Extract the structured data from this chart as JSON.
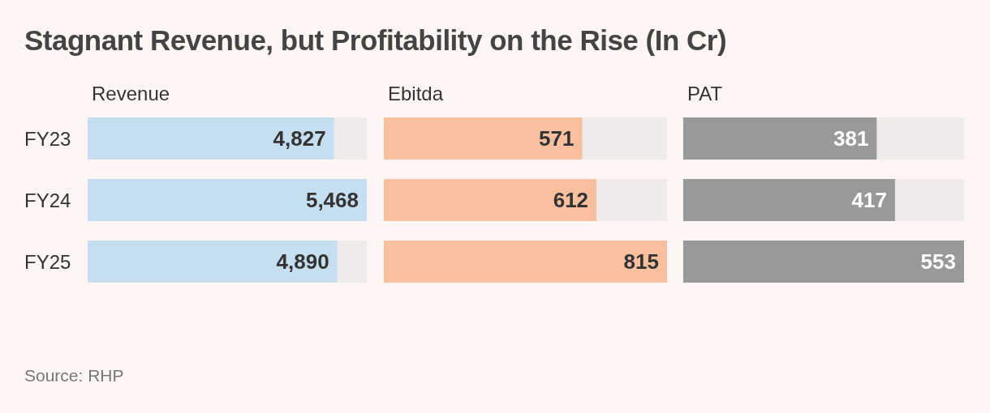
{
  "chart_data": [
    {
      "type": "bar",
      "orientation": "horizontal",
      "title": "Stagnant Revenue, but Profitability on the Rise (In Cr)",
      "xlabel": "Revenue",
      "categories": [
        "FY23",
        "FY24",
        "FY25"
      ],
      "values": [
        4827,
        5468,
        4890
      ],
      "value_labels": [
        "4,827",
        "5,468",
        "4,890"
      ],
      "color": "#c5dff0",
      "tick_labels": "y",
      "annotations": [
        "Source: RHP"
      ]
    },
    {
      "type": "bar",
      "orientation": "horizontal",
      "xlabel": "Ebitda",
      "categories": [
        null,
        null,
        null
      ],
      "values": [
        571,
        612,
        815
      ],
      "value_labels": [
        "571",
        "612",
        "815"
      ],
      "color": "#f9c0a0"
    },
    {
      "type": "bar",
      "orientation": "horizontal",
      "xlabel": "PAT",
      "categories": [
        null,
        null,
        null
      ],
      "values": [
        381,
        417,
        553
      ],
      "value_labels": [
        "381",
        "417",
        "553"
      ],
      "color": "#999999"
    }
  ]
}
